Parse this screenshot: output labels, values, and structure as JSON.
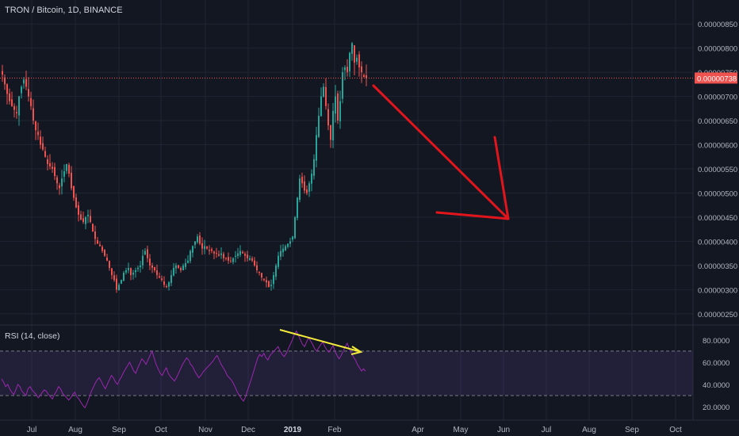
{
  "chart_data": [
    {
      "type": "candlestick",
      "title": "TRON / Bitcoin, 1D, BINANCE",
      "y_ticks": [
        "0.00000850",
        "0.00000800",
        "0.00000750",
        "0.00000700",
        "0.00000650",
        "0.00000600",
        "0.00000550",
        "0.00000500",
        "0.00000450",
        "0.00000400",
        "0.00000350",
        "0.00000300",
        "0.00000250"
      ],
      "last_price_label": "0.00000738",
      "last_price": 7.38e-06,
      "ylim": [
        2.3e-06,
        8.7e-06
      ],
      "grid": true,
      "x_tick_labels": [
        "Jul",
        "Aug",
        "Sep",
        "Oct",
        "Nov",
        "Dec",
        "2019",
        "Feb",
        "Apr",
        "May",
        "Jun",
        "Jul",
        "Aug",
        "Sep",
        "Oct"
      ],
      "series": [
        {
          "values": [
            7.45e-06,
            7.25e-06,
            7.05e-06,
            6.9e-06,
            6.8e-06,
            6.72e-06,
            6.65e-06,
            7e-06,
            7.2e-06,
            7.35e-06,
            7.2e-06,
            7e-06,
            6.8e-06,
            6.5e-06,
            6.3e-06,
            6.2e-06,
            6e-06,
            5.9e-06,
            5.75e-06,
            5.6e-06,
            5.55e-06,
            5.5e-06,
            5.35e-06,
            5.2e-06,
            5.1e-06,
            5.3e-06,
            5.45e-06,
            5.6e-06,
            5.4e-06,
            5.1e-06,
            4.9e-06,
            4.7e-06,
            4.55e-06,
            4.45e-06,
            4.4e-06,
            4.5e-06,
            4.55e-06,
            4.4e-06,
            4.2e-06,
            4.05e-06,
            3.95e-06,
            3.9e-06,
            3.8e-06,
            3.7e-06,
            3.6e-06,
            3.45e-06,
            3.3e-06,
            3.2e-06,
            3e-06,
            3.1e-06,
            3.2e-06,
            3.35e-06,
            3.4e-06,
            3.45e-06,
            3.3e-06,
            3.35e-06,
            3.4e-06,
            3.45e-06,
            3.5e-06,
            3.7e-06,
            3.8e-06,
            3.65e-06,
            3.5e-06,
            3.45e-06,
            3.4e-06,
            3.3e-06,
            3.25e-06,
            3.2e-06,
            3.1e-06,
            3.05e-06,
            3.15e-06,
            3.3e-06,
            3.45e-06,
            3.5e-06,
            3.45e-06,
            3.4e-06,
            3.5e-06,
            3.55e-06,
            3.6e-06,
            3.8e-06,
            3.9e-06,
            4e-06,
            4.1e-06,
            3.95e-06,
            3.85e-06,
            3.9e-06,
            3.85e-06,
            3.8e-06,
            3.8e-06,
            3.75e-06,
            3.75e-06,
            3.7e-06,
            3.75e-06,
            3.65e-06,
            3.65e-06,
            3.6e-06,
            3.6e-06,
            3.65e-06,
            3.7e-06,
            3.75e-06,
            3.8e-06,
            3.75e-06,
            3.7e-06,
            3.65e-06,
            3.65e-06,
            3.6e-06,
            3.5e-06,
            3.4e-06,
            3.35e-06,
            3.25e-06,
            3.2e-06,
            3.15e-06,
            3.05e-06,
            3.1e-06,
            3.3e-06,
            3.5e-06,
            3.7e-06,
            3.8e-06,
            3.85e-06,
            3.9e-06,
            3.95e-06,
            4e-06,
            4.1e-06,
            4.5e-06,
            4.9e-06,
            5.3e-06,
            5.2e-06,
            5.05e-06,
            5e-06,
            5.2e-06,
            5.4e-06,
            5.7e-06,
            6.2e-06,
            6.6e-06,
            7e-06,
            7.2e-06,
            6.8e-06,
            6.4e-06,
            6.1e-06,
            6.7e-06,
            7e-06,
            6.5e-06,
            6.9e-06,
            7.5e-06,
            7.6e-06,
            7.5e-06,
            7.9e-06,
            8.1e-06,
            7.7e-06,
            7.8e-06,
            7.6e-06,
            7.5e-06,
            7.4e-06,
            7.38e-06
          ]
        }
      ]
    },
    {
      "type": "line",
      "title": "RSI (14, close)",
      "y_ticks": [
        "80.0000",
        "60.0000",
        "40.0000",
        "20.0000"
      ],
      "ylim": [
        15,
        92
      ],
      "band": [
        30,
        70
      ],
      "series": [
        {
          "values": [
            45,
            42,
            38,
            40,
            36,
            33,
            31,
            35,
            40,
            38,
            34,
            32,
            30,
            36,
            38,
            35,
            33,
            31,
            28,
            30,
            33,
            35,
            34,
            31,
            29,
            27,
            31,
            34,
            38,
            36,
            32,
            30,
            28,
            26,
            28,
            31,
            33,
            29,
            27,
            24,
            21,
            19,
            23,
            28,
            33,
            37,
            41,
            44,
            46,
            43,
            39,
            36,
            40,
            44,
            48,
            46,
            42,
            40,
            44,
            47,
            51,
            54,
            57,
            60,
            56,
            52,
            50,
            55,
            59,
            63,
            61,
            58,
            62,
            66,
            70,
            64,
            58,
            54,
            50,
            48,
            52,
            55,
            50,
            47,
            45,
            43,
            46,
            50,
            54,
            58,
            61,
            64,
            62,
            58,
            56,
            52,
            49,
            46,
            48,
            51,
            53,
            55,
            57,
            59,
            61,
            64,
            66,
            62,
            58,
            55,
            52,
            48,
            46,
            44,
            41,
            37,
            33,
            30,
            27,
            25,
            29,
            35,
            40,
            46,
            52,
            58,
            64,
            67,
            65,
            68,
            64,
            62,
            66,
            68,
            70,
            72,
            74,
            70,
            67,
            65,
            68,
            72,
            76,
            80,
            85,
            88,
            84,
            80,
            76,
            74,
            78,
            82,
            79,
            76,
            72,
            70,
            73,
            76,
            78,
            74,
            71,
            69,
            72,
            75,
            70,
            66,
            63,
            66,
            70,
            74,
            77,
            72,
            68,
            65,
            62,
            58,
            55,
            52,
            54,
            52
          ]
        }
      ]
    }
  ]
}
